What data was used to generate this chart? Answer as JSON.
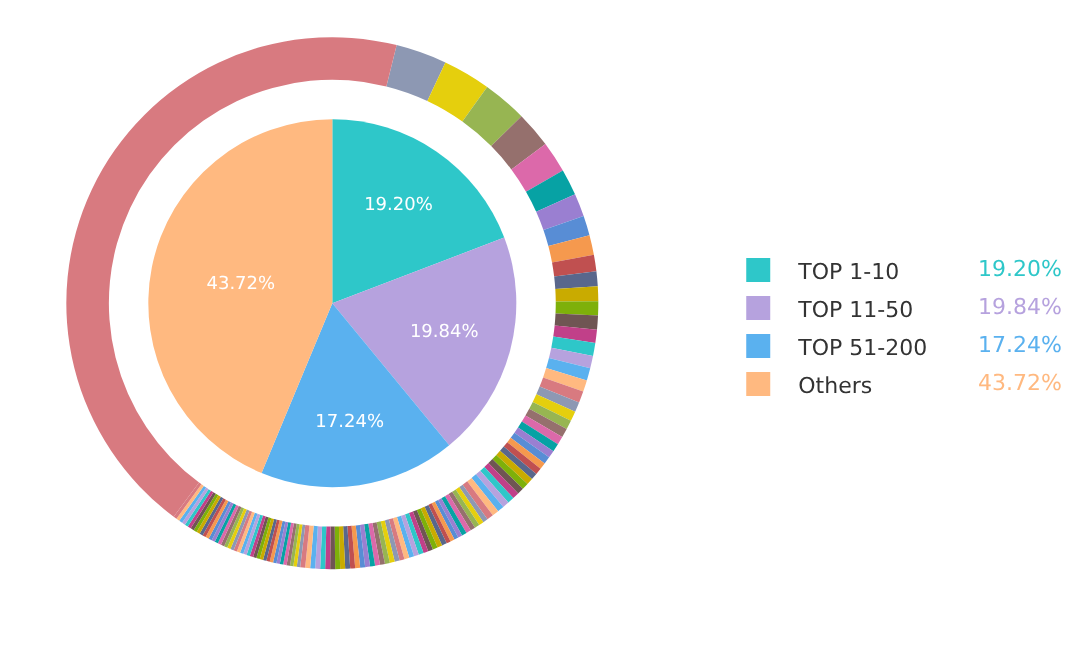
{
  "chart_data": [
    {
      "type": "pie",
      "legend": "right",
      "categories": [
        "TOP 1-10",
        "TOP 11-50",
        "TOP 51-200",
        "Others"
      ],
      "values": [
        19.2,
        19.84,
        17.24,
        43.72
      ],
      "value_labels": [
        "19.20%",
        "19.84%",
        "17.24%",
        "43.72%"
      ],
      "colors": [
        "#2ec7c9",
        "#b6a2de",
        "#5ab1ef",
        "#ffb980"
      ]
    },
    {
      "type": "donut",
      "values": [
        3.1,
        2.9,
        2.7,
        2.2,
        1.9,
        1.6,
        1.4,
        1.2,
        1.2,
        1.0,
        0.9,
        0.9,
        0.85,
        0.85,
        0.8,
        0.8,
        0.75,
        0.75,
        0.7,
        0.7,
        0.6,
        0.6,
        0.55,
        0.55,
        0.5,
        0.5,
        0.45,
        0.45,
        0.4,
        0.4,
        0.4,
        0.4,
        0.4,
        0.4,
        0.4,
        0.4,
        0.4,
        0.4,
        0.4,
        0.4,
        0.3,
        0.3,
        0.3,
        0.3,
        0.3,
        0.3,
        0.26,
        0.26,
        0.26,
        0.26,
        0.3,
        0.3,
        0.3,
        0.3,
        0.3,
        0.3,
        0.3,
        0.3,
        0.3,
        0.3,
        0.3,
        0.3,
        0.3,
        0.3,
        0.3,
        0.3,
        0.3,
        0.3,
        0.3,
        0.3,
        0.3,
        0.3,
        0.3,
        0.3,
        0.3,
        0.3,
        0.3,
        0.3,
        0.3,
        0.3,
        0.206,
        0.206,
        0.206,
        0.206,
        0.206,
        0.206,
        0.206,
        0.206,
        0.206,
        0.206,
        0.206,
        0.206,
        0.206,
        0.206,
        0.206,
        0.206,
        0.206,
        0.206,
        0.206,
        0.206,
        0.206,
        0.206,
        0.206,
        0.206,
        0.206,
        0.206,
        0.206,
        0.206,
        0.206,
        0.206,
        0.206,
        0.206,
        0.206,
        0.206,
        0.206,
        0.206,
        0.206,
        0.206,
        0.206,
        0.206,
        43.72
      ],
      "colors": [
        "#8d98b3",
        "#e5cf0d",
        "#97b552",
        "#95706d",
        "#dc69aa",
        "#07a2a4",
        "#9a7fd1",
        "#588dd5",
        "#f5994e",
        "#c05050",
        "#59678c",
        "#c9ab00",
        "#7eb00a",
        "#6f5553",
        "#c14089",
        "#2ec7c9",
        "#b6a2de",
        "#5ab1ef",
        "#ffb980",
        "#d87a80",
        "#8d98b3",
        "#e5cf0d",
        "#97b552",
        "#95706d",
        "#dc69aa",
        "#07a2a4",
        "#9a7fd1",
        "#588dd5",
        "#f5994e",
        "#c05050",
        "#59678c",
        "#c9ab00",
        "#7eb00a",
        "#6f5553",
        "#c14089",
        "#2ec7c9",
        "#b6a2de",
        "#5ab1ef",
        "#ffb980",
        "#d87a80",
        "#8d98b3",
        "#e5cf0d",
        "#97b552",
        "#95706d",
        "#dc69aa",
        "#07a2a4",
        "#9a7fd1",
        "#588dd5",
        "#f5994e",
        "#c05050",
        "#59678c",
        "#c9ab00",
        "#7eb00a",
        "#6f5553",
        "#c14089",
        "#2ec7c9",
        "#b6a2de",
        "#5ab1ef",
        "#ffb980",
        "#d87a80",
        "#8d98b3",
        "#e5cf0d",
        "#97b552",
        "#95706d",
        "#dc69aa",
        "#07a2a4",
        "#9a7fd1",
        "#588dd5",
        "#f5994e",
        "#c05050",
        "#59678c",
        "#c9ab00",
        "#7eb00a",
        "#6f5553",
        "#c14089",
        "#2ec7c9",
        "#b6a2de",
        "#5ab1ef",
        "#ffb980",
        "#d87a80",
        "#8d98b3",
        "#e5cf0d",
        "#97b552",
        "#95706d",
        "#dc69aa",
        "#07a2a4",
        "#9a7fd1",
        "#588dd5",
        "#f5994e",
        "#c05050",
        "#59678c",
        "#c9ab00",
        "#7eb00a",
        "#6f5553",
        "#c14089",
        "#2ec7c9",
        "#b6a2de",
        "#5ab1ef",
        "#ffb980",
        "#d87a80",
        "#8d98b3",
        "#e5cf0d",
        "#97b552",
        "#95706d",
        "#dc69aa",
        "#07a2a4",
        "#9a7fd1",
        "#588dd5",
        "#f5994e",
        "#c05050",
        "#59678c",
        "#c9ab00",
        "#7eb00a",
        "#6f5553",
        "#c14089",
        "#2ec7c9",
        "#b6a2de",
        "#5ab1ef",
        "#ffb980",
        "#d87a80",
        "#d87a80"
      ]
    }
  ]
}
